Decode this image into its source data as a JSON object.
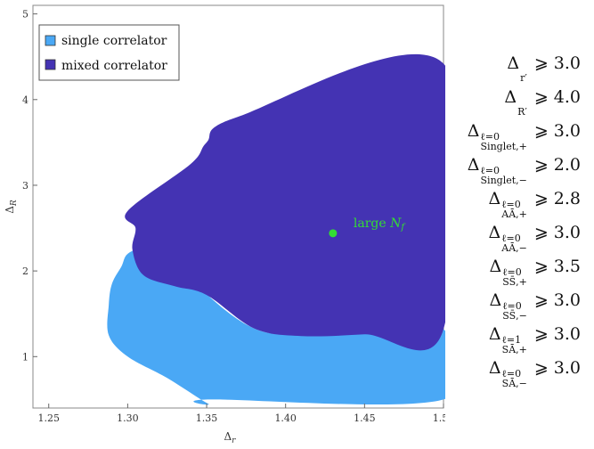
{
  "chart_data": {
    "type": "area",
    "title": "",
    "xlabel": "Δr",
    "ylabel": "ΔR",
    "xlim": [
      1.24,
      1.5
    ],
    "ylim": [
      0.4,
      5.1
    ],
    "x_ticks": [
      "1.25",
      "1.30",
      "1.35",
      "1.40",
      "1.45",
      "1.50"
    ],
    "y_ticks": [
      "1",
      "2",
      "3",
      "4",
      "5"
    ],
    "legend_position": "top-left",
    "series": [
      {
        "name": "single correlator",
        "color": "#4aa8f5",
        "boundary": [
          [
            1.351,
            0.45
          ],
          [
            1.325,
            0.75
          ],
          [
            1.3,
            1.0
          ],
          [
            1.288,
            1.25
          ],
          [
            1.288,
            1.6
          ],
          [
            1.29,
            1.85
          ],
          [
            1.296,
            2.05
          ],
          [
            1.3,
            2.2
          ],
          [
            1.312,
            2.3
          ],
          [
            1.32,
            2.35
          ],
          [
            1.35,
            1.73
          ],
          [
            1.38,
            1.33
          ],
          [
            1.41,
            1.25
          ],
          [
            1.45,
            1.28
          ],
          [
            1.5,
            1.32
          ],
          [
            1.5,
            0.5
          ],
          [
            1.352,
            0.5
          ]
        ]
      },
      {
        "name": "mixed correlator",
        "color": "#4433b3",
        "boundary": [
          [
            1.5,
            4.42
          ],
          [
            1.37,
            3.8
          ],
          [
            1.35,
            3.5
          ],
          [
            1.34,
            3.25
          ],
          [
            1.3,
            2.7
          ],
          [
            1.305,
            2.5
          ],
          [
            1.303,
            2.25
          ],
          [
            1.31,
            1.95
          ],
          [
            1.33,
            1.82
          ],
          [
            1.35,
            1.72
          ],
          [
            1.38,
            1.33
          ],
          [
            1.41,
            1.24
          ],
          [
            1.45,
            1.26
          ],
          [
            1.5,
            1.32
          ]
        ]
      }
    ],
    "point": {
      "label": "large Nf",
      "x": 1.43,
      "y": 2.44,
      "color": "#33dd33"
    }
  },
  "legend": {
    "single": "single correlator",
    "mixed": "mixed correlator"
  },
  "annotation": {
    "base": "large ",
    "var": "N",
    "sub": "f"
  },
  "axis": {
    "x_sym": "Δ",
    "x_sub": "r",
    "y_sym": "Δ",
    "y_sub": "R"
  },
  "bounds": [
    {
      "sym": "Δ",
      "sup": "",
      "sub": "r′",
      "rel": "⩾",
      "value": "3.0"
    },
    {
      "sym": "Δ",
      "sup": "",
      "sub": "R′",
      "rel": "⩾",
      "value": "4.0"
    },
    {
      "sym": "Δ",
      "sup": "ℓ=0",
      "sub": "Singlet,+",
      "rel": "⩾",
      "value": "3.0"
    },
    {
      "sym": "Δ",
      "sup": "ℓ=0",
      "sub": "Singlet,−",
      "rel": "⩾",
      "value": "2.0"
    },
    {
      "sym": "Δ",
      "sup": "ℓ=0",
      "sub": "AĀ,+",
      "rel": "⩾",
      "value": "2.8"
    },
    {
      "sym": "Δ",
      "sup": "ℓ=0",
      "sub": "AĀ,−",
      "rel": "⩾",
      "value": "3.0"
    },
    {
      "sym": "Δ",
      "sup": "ℓ=0",
      "sub": "SS̄,+",
      "rel": "⩾",
      "value": "3.5"
    },
    {
      "sym": "Δ",
      "sup": "ℓ=0",
      "sub": "SS̄,−",
      "rel": "⩾",
      "value": "3.0"
    },
    {
      "sym": "Δ",
      "sup": "ℓ=1",
      "sub": "SĀ,+",
      "rel": "⩾",
      "value": "3.0"
    },
    {
      "sym": "Δ",
      "sup": "ℓ=0",
      "sub": "SĀ,−",
      "rel": "⩾",
      "value": "3.0"
    }
  ]
}
